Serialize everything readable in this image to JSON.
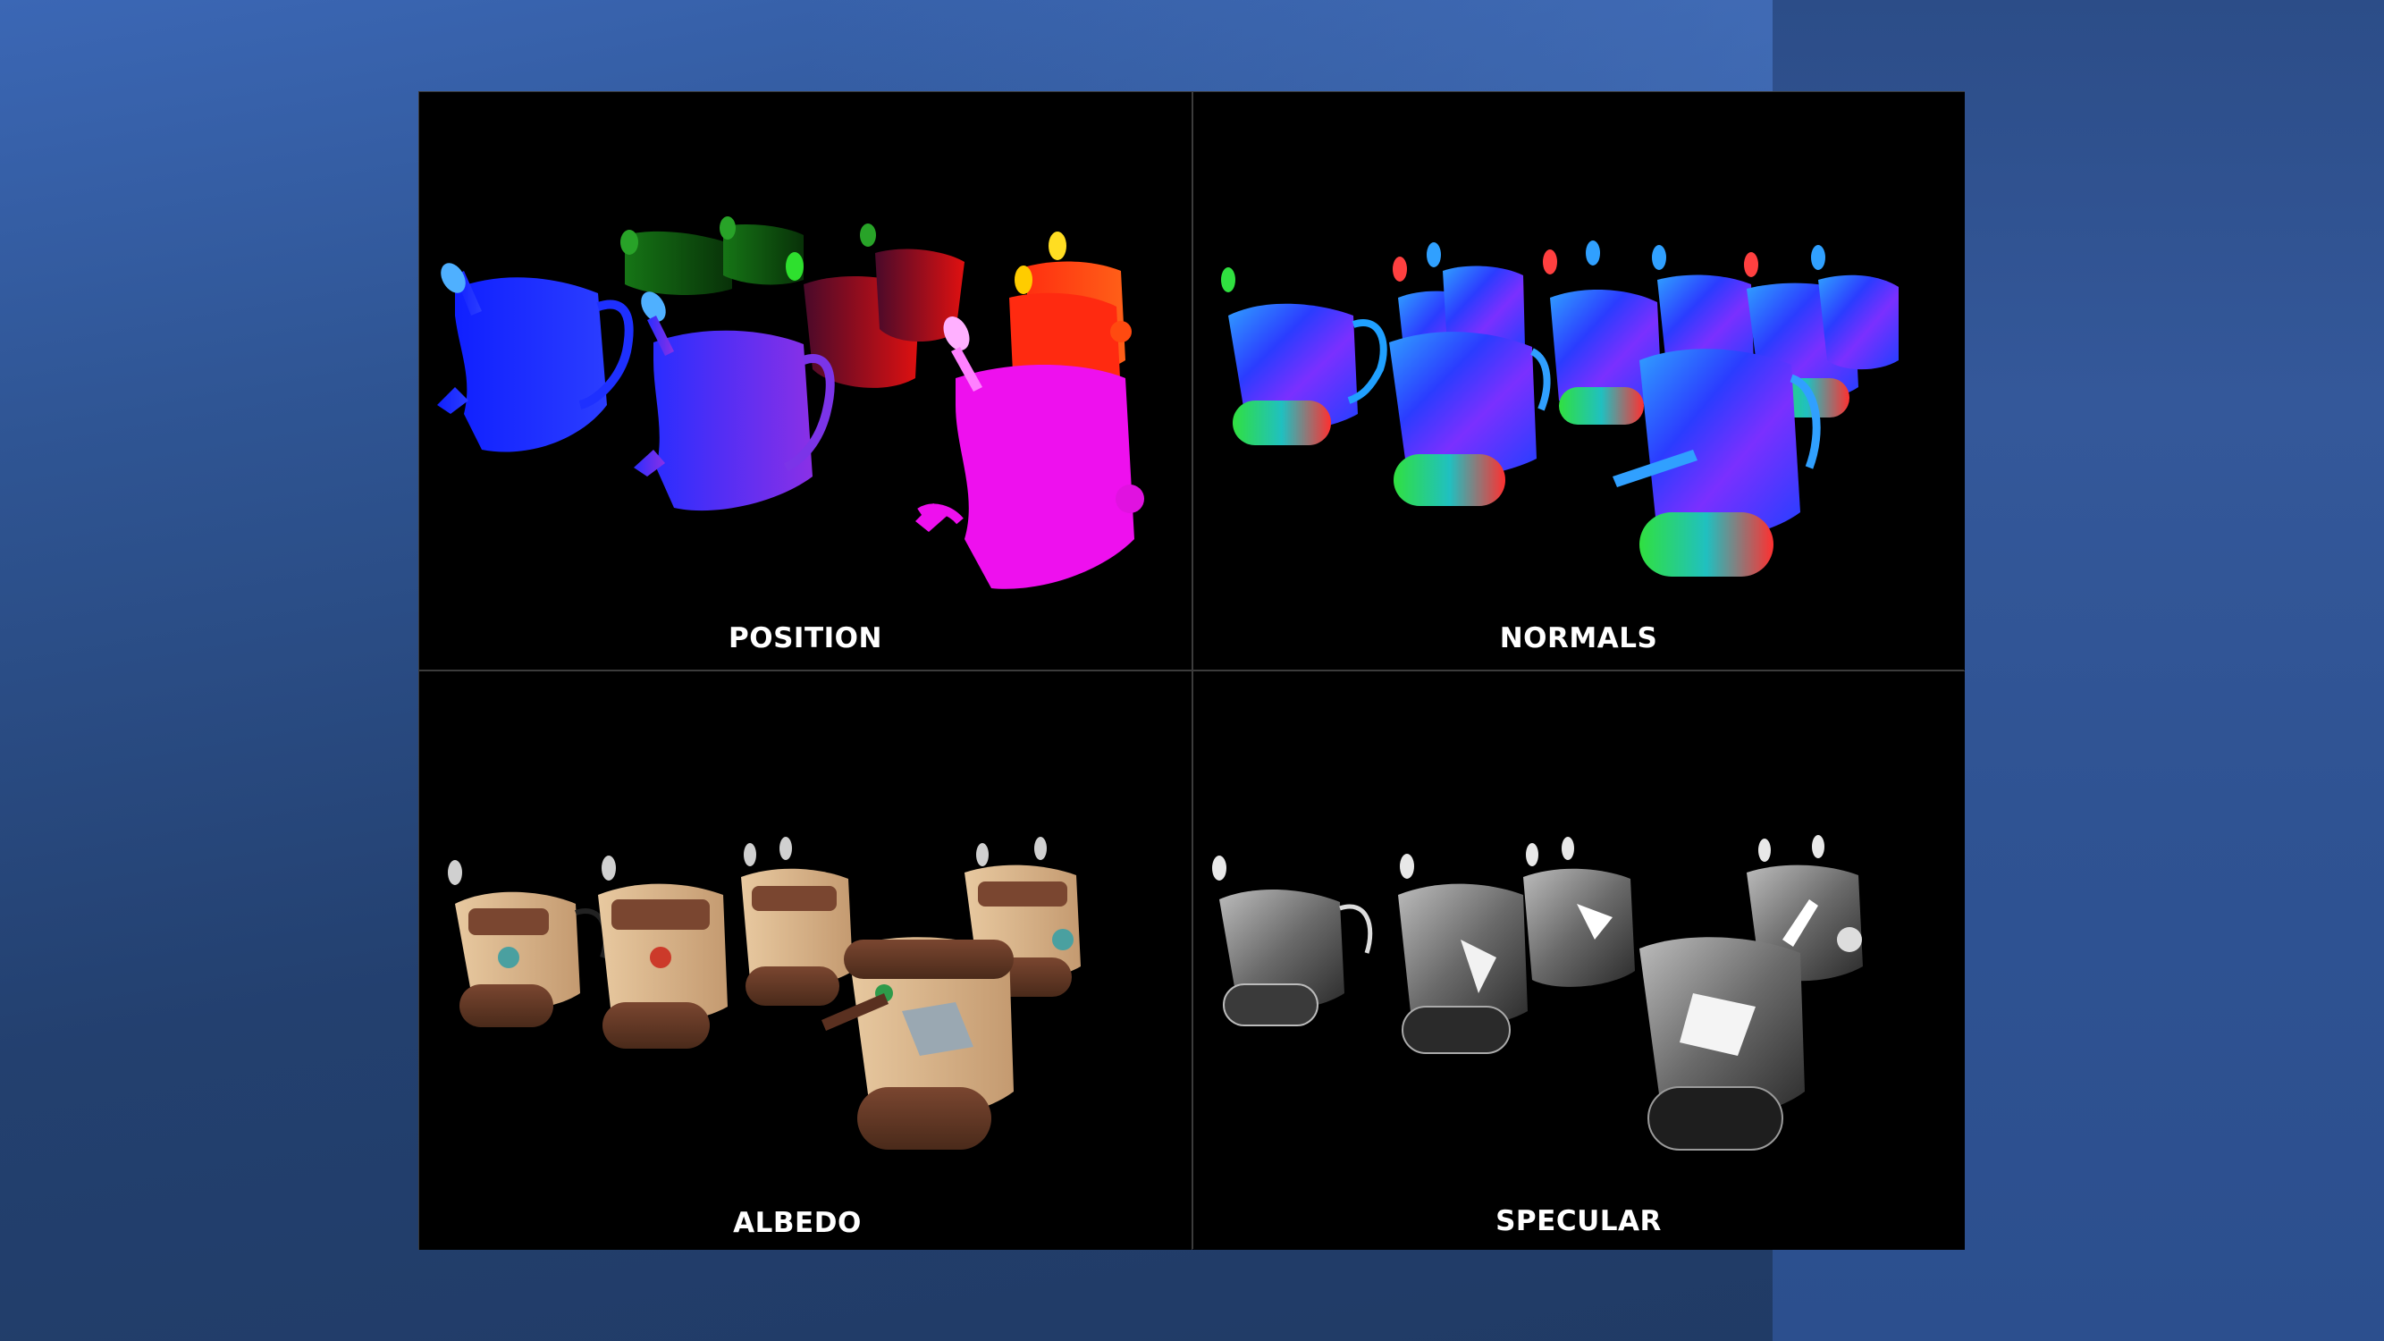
{
  "gbuffer": {
    "panels": [
      {
        "id": "position",
        "label": "POSITION"
      },
      {
        "id": "normals",
        "label": "NORMALS"
      },
      {
        "id": "albedo",
        "label": "ALBEDO"
      },
      {
        "id": "specular",
        "label": "SPECULAR"
      }
    ]
  },
  "colors": {
    "background": "#2a4a80",
    "panel_background": "#000000",
    "label": "#ffffff"
  }
}
